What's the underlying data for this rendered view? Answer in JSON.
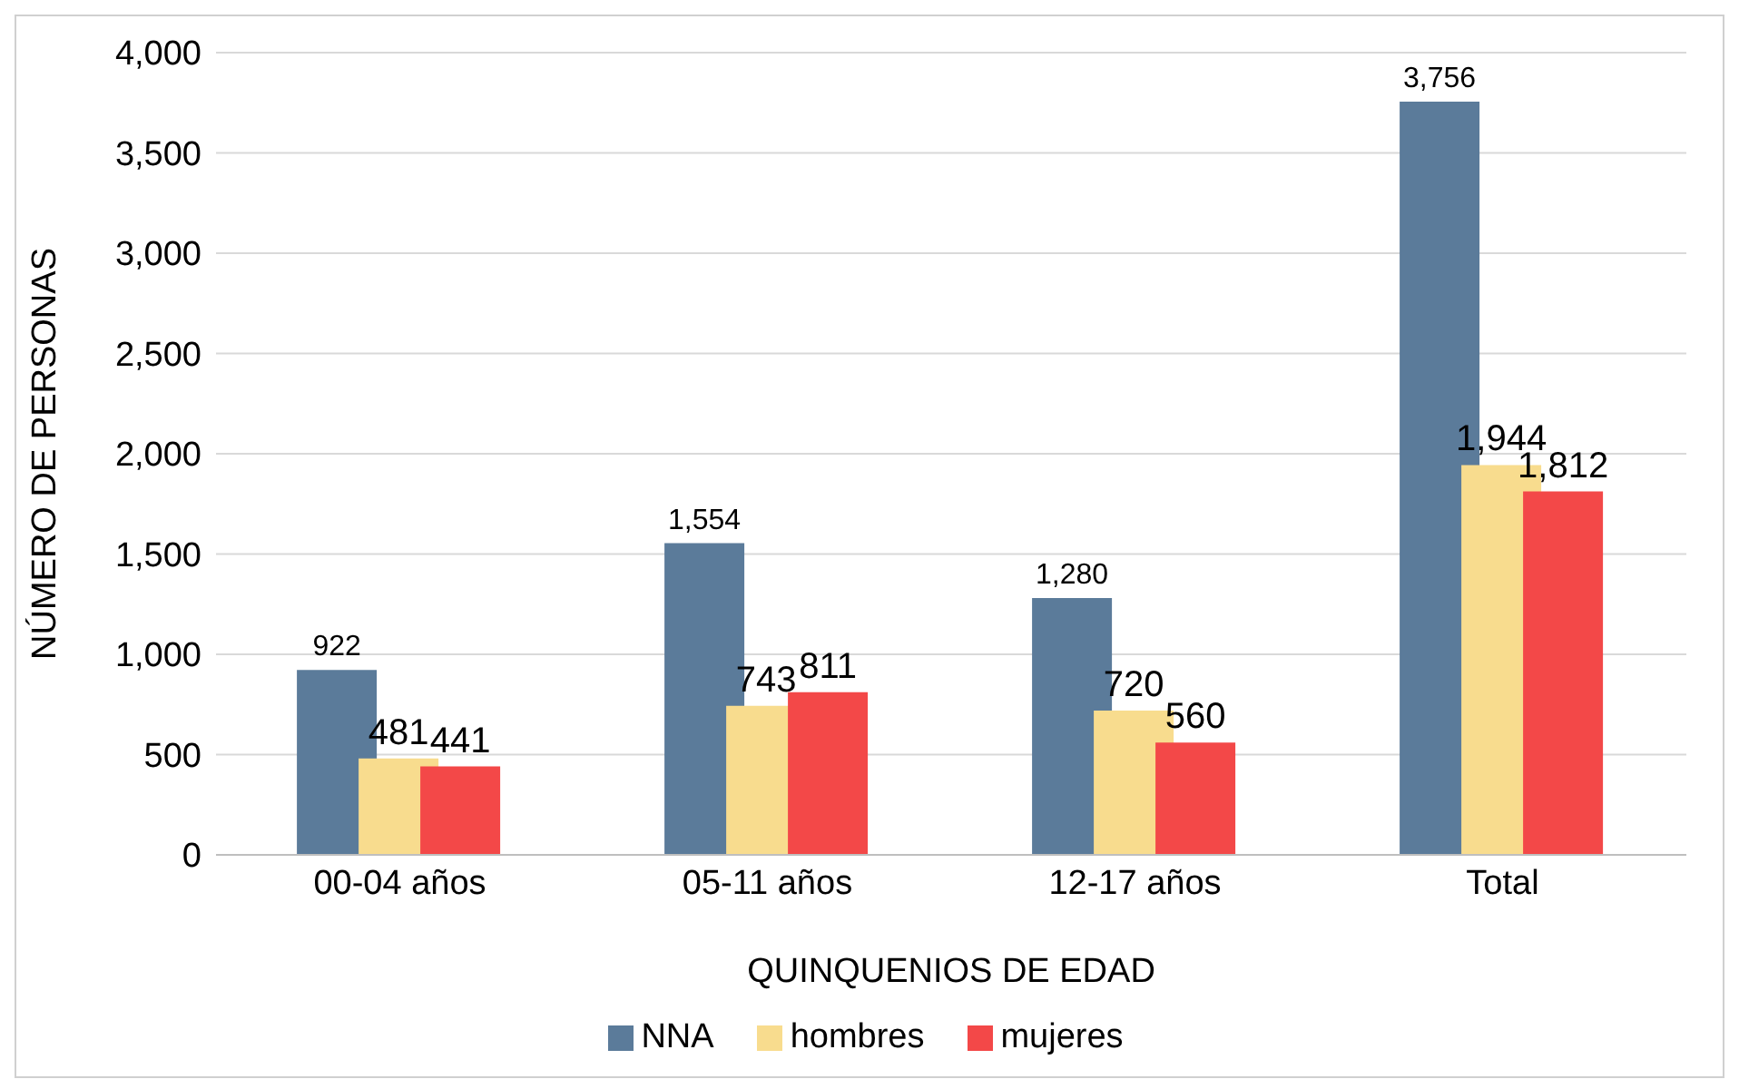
{
  "chart_data": {
    "type": "bar",
    "xlabel": "QUINQUENIOS DE EDAD",
    "ylabel": "NÚMERO DE PERSONAS",
    "categories": [
      "00-04 años",
      "05-11 años",
      "12-17 años",
      "Total"
    ],
    "series": [
      {
        "name": "NNA",
        "color": "#5b7b9a",
        "values": [
          922,
          1554,
          1280,
          3756
        ],
        "value_labels": [
          "922",
          "1,554",
          "1,280",
          "3,756"
        ]
      },
      {
        "name": "hombres",
        "color": "#f8dc8e",
        "values": [
          481,
          743,
          720,
          1944
        ],
        "value_labels": [
          "481",
          "743",
          "720",
          "1,944"
        ]
      },
      {
        "name": "mujeres",
        "color": "#f34848",
        "values": [
          441,
          811,
          560,
          1812
        ],
        "value_labels": [
          "441",
          "811",
          "560",
          "1,812"
        ]
      }
    ],
    "ylim": [
      0,
      4000
    ],
    "yticks": [
      0,
      500,
      {
        "value": 1000,
        "label": "1,000"
      },
      {
        "value": 1500,
        "label": "1,500"
      },
      {
        "value": 2000,
        "label": "2,000"
      },
      {
        "value": 2500,
        "label": "2,500"
      },
      {
        "value": 3000,
        "label": "3,000"
      },
      {
        "value": 3500,
        "label": "3,500"
      },
      {
        "value": 4000,
        "label": "4,000"
      }
    ],
    "grid": "y",
    "legend": "bottom"
  }
}
